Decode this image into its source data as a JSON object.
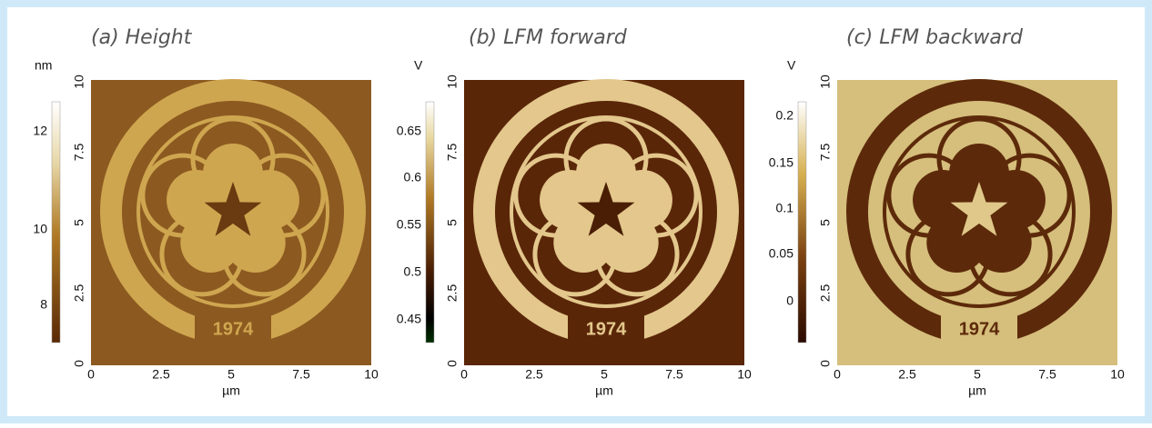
{
  "panels": [
    {
      "title": "(a) Height",
      "unit": "nm",
      "colorbar_ticks": [
        "12",
        "10",
        "8"
      ],
      "y_ticks": [
        "10",
        "7.5",
        "5",
        "2.5",
        "0"
      ],
      "x_ticks": [
        "0",
        "2.5",
        "5",
        "7.5",
        "10"
      ],
      "x_label": "µm",
      "image_label": "1974"
    },
    {
      "title": "(b) LFM forward",
      "unit": "V",
      "colorbar_ticks": [
        "0.65",
        "0.6",
        "0.55",
        "0.5",
        "0.45"
      ],
      "y_ticks": [
        "10",
        "7.5",
        "5",
        "2.5",
        "0"
      ],
      "x_ticks": [
        "0",
        "2.5",
        "5",
        "7.5",
        "10"
      ],
      "x_label": "µm",
      "image_label": "1974"
    },
    {
      "title": "(c) LFM backward",
      "unit": "V",
      "colorbar_ticks": [
        "0.2",
        "0.15",
        "0.1",
        "0.05",
        "0"
      ],
      "y_ticks": [
        "10",
        "7.5",
        "5",
        "2.5",
        "0"
      ],
      "x_ticks": [
        "0",
        "2.5",
        "5",
        "7.5",
        "10"
      ],
      "x_label": "µm",
      "image_label": "1974"
    }
  ]
}
